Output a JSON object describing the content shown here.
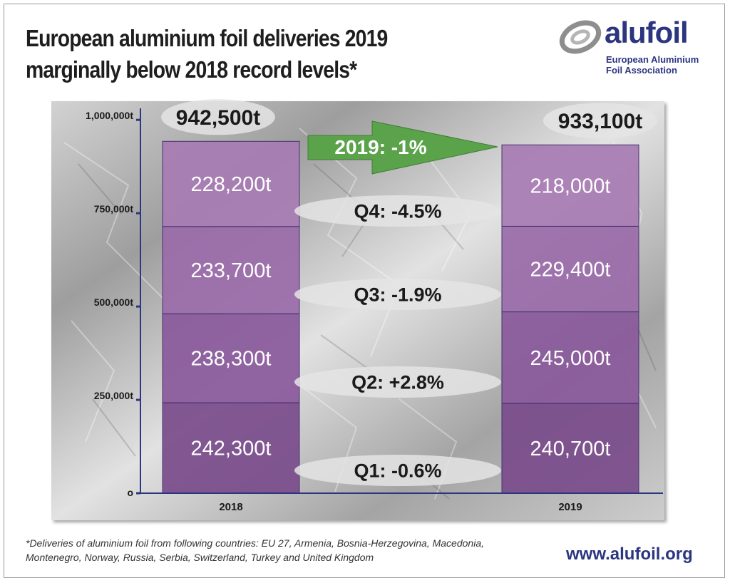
{
  "chart_data": {
    "type": "bar",
    "stacked": true,
    "title_lines": [
      "European aluminium foil deliveries 2019",
      "marginally below 2018 record levels*"
    ],
    "categories": [
      "2018",
      "2019"
    ],
    "series": [
      {
        "values": [
          242300,
          240700
        ],
        "labels": [
          "242,300t",
          "240,700t"
        ],
        "color": "#7a4c8c"
      },
      {
        "values": [
          238300,
          245000
        ],
        "labels": [
          "238,300t",
          "245,000t"
        ],
        "color": "#8a5a9c"
      },
      {
        "values": [
          233700,
          229400
        ],
        "labels": [
          "233,700t",
          "229,400t"
        ],
        "color": "#9b6caa"
      },
      {
        "values": [
          228200,
          218000
        ],
        "labels": [
          "228,200t",
          "218,000t"
        ],
        "color": "#a87cb4"
      }
    ],
    "totals": [
      "942,500t",
      "933,100t"
    ],
    "total_values": [
      942500,
      933100
    ],
    "ylim": [
      0,
      1050000
    ],
    "yticks": [
      {
        "value": 0,
        "label": "o"
      },
      {
        "value": 250000,
        "label": "250,000t"
      },
      {
        "value": 500000,
        "label": "500,000t"
      },
      {
        "value": 750000,
        "label": "750,000t"
      },
      {
        "value": 1000000,
        "label": "1,000,000t"
      }
    ],
    "quarter_changes": [
      "Q1: -0.6%",
      "Q2: +2.8%",
      "Q3: -1.9%",
      "Q4: -4.5%"
    ],
    "overall_change": "2019: -1%",
    "colors": {
      "axis": "#2b3580",
      "arrow": "#5aa34a",
      "background": "#b9b9b9"
    }
  },
  "logo": {
    "word": "alufoil",
    "sub_lines": [
      "European Aluminium",
      "Foil Association"
    ]
  },
  "footnote": "*Deliveries of aluminium foil from following countries: EU 27, Armenia, Bosnia-Herzegovina, Macedonia, Montenegro, Norway, Russia, Serbia, Switzerland, Turkey and United Kingdom",
  "website": "www.alufoil.org"
}
